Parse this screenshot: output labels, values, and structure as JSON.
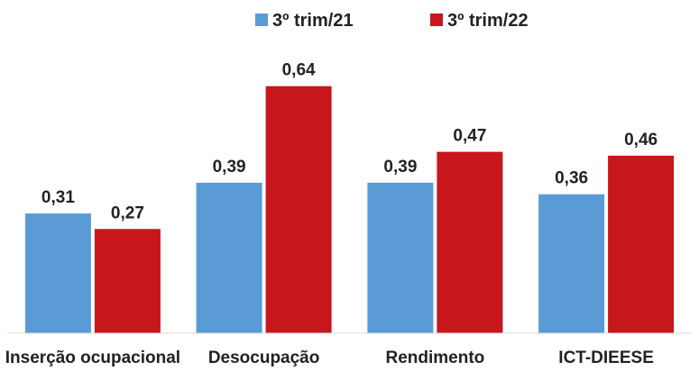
{
  "chart_data": {
    "type": "bar",
    "title": "",
    "xlabel": "",
    "ylabel": "",
    "ylim": [
      0,
      0.7
    ],
    "grid": false,
    "legend_position": "top-center",
    "categories": [
      "Inserção ocupacional",
      "Desocupação",
      "Rendimento",
      "ICT-DIEESE"
    ],
    "series": [
      {
        "name": "3º trim/21",
        "color": "#5b9bd5",
        "values": [
          0.31,
          0.39,
          0.39,
          0.36
        ],
        "labels": [
          "0,31",
          "0,39",
          "0,39",
          "0,36"
        ]
      },
      {
        "name": "3º trim/22",
        "color": "#c8161d",
        "values": [
          0.27,
          0.64,
          0.47,
          0.46
        ],
        "labels": [
          "0,27",
          "0,64",
          "0,47",
          "0,46"
        ]
      }
    ]
  }
}
